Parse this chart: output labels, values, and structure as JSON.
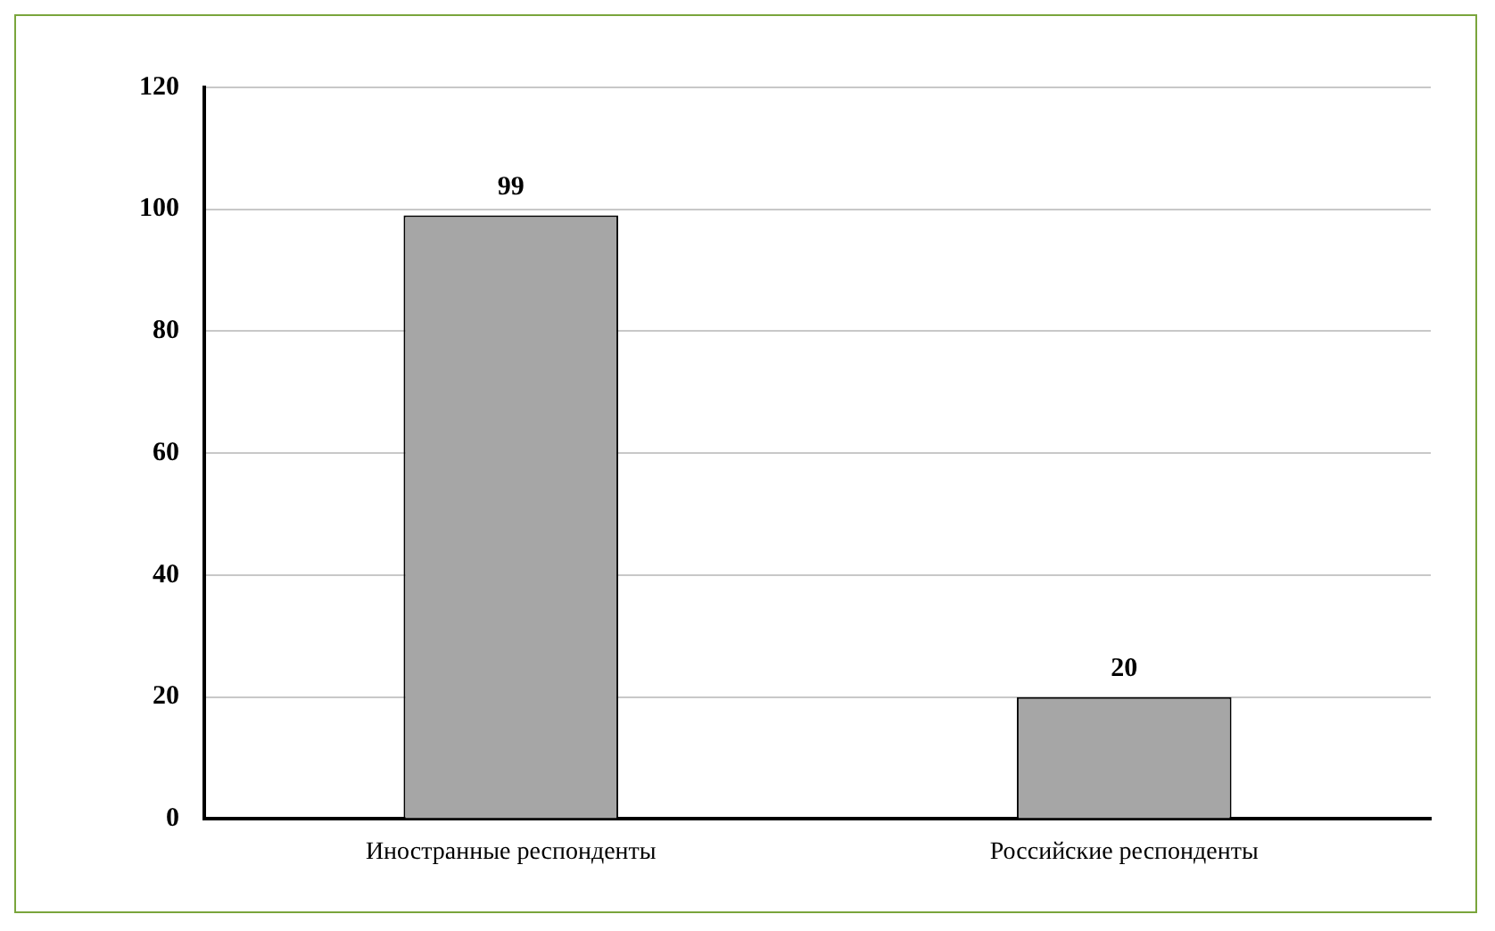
{
  "chart_data": {
    "type": "bar",
    "categories": [
      "Иностранные респонденты",
      "Российские респонденты"
    ],
    "values": [
      99,
      20
    ],
    "color": "#a6a6a6",
    "ylim": [
      0,
      120
    ],
    "yticks": [
      0,
      20,
      40,
      60,
      80,
      100,
      120
    ],
    "grid": "y",
    "data_labels": true
  }
}
